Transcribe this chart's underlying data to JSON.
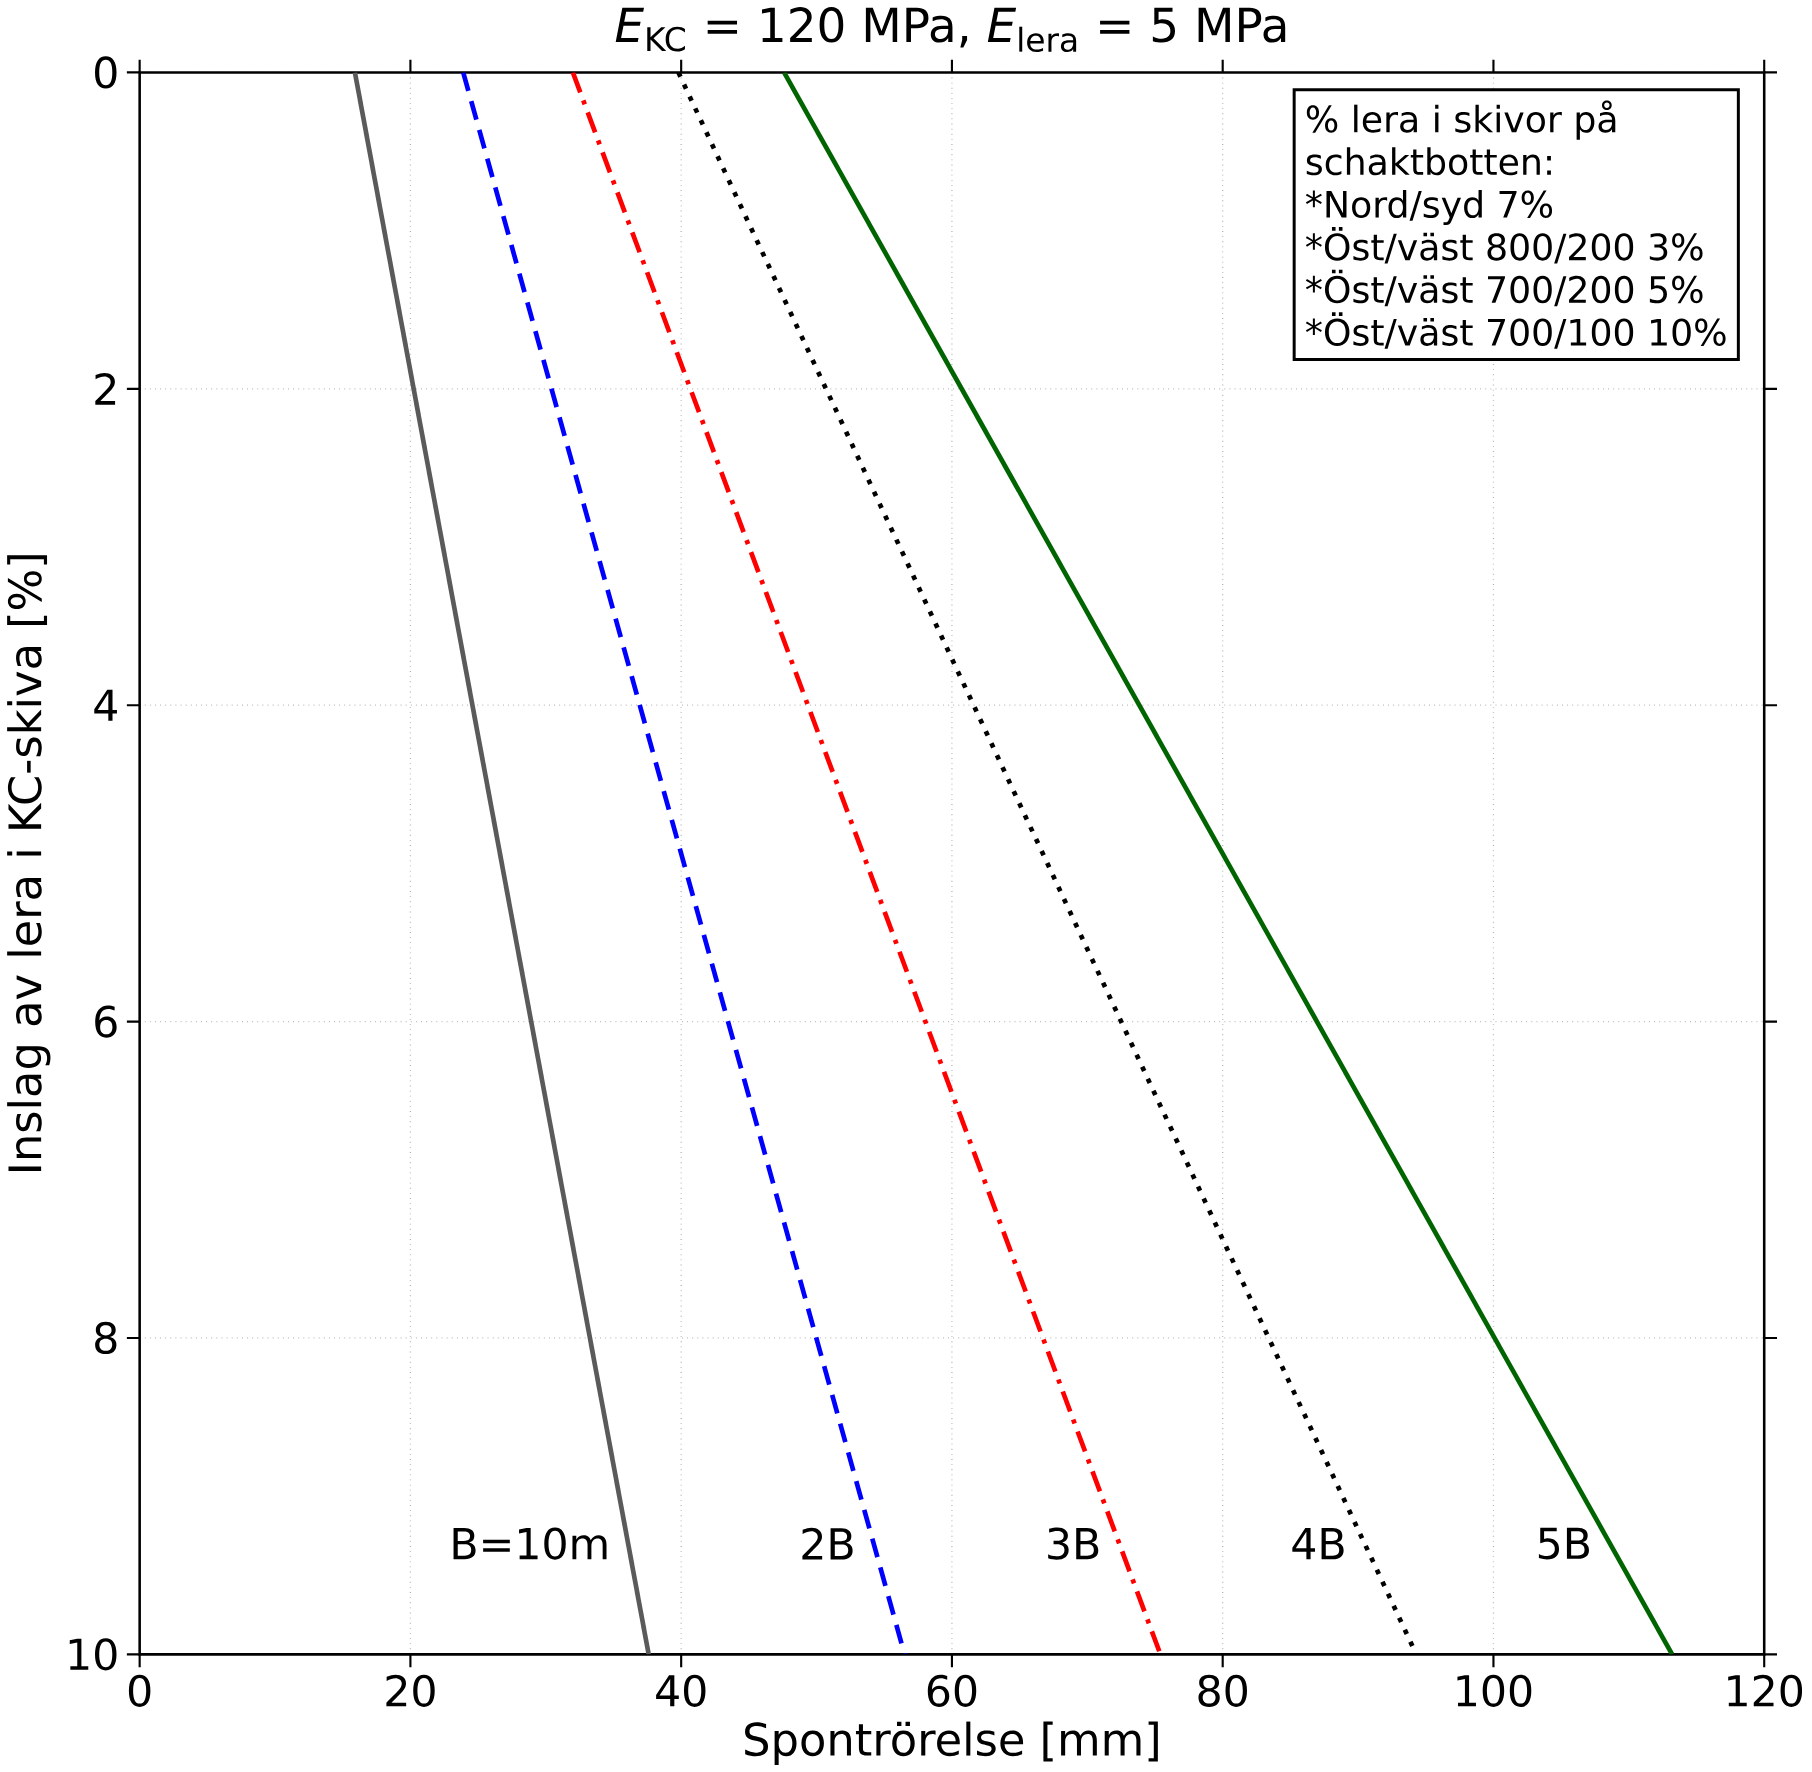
{
  "chart_data": {
    "type": "line",
    "title": "*E*$_{KC}$ = 120 MPa, *E*$_{lera}$ = 5 MPa",
    "xlabel": "Spontrörelse [mm]",
    "ylabel": "Inslag av lera i KC-skiva [%]",
    "xlim": [
      0,
      120
    ],
    "xticks": [
      0,
      20,
      40,
      60,
      80,
      100,
      120
    ],
    "ylim": [
      10,
      0
    ],
    "yticks": [
      0,
      2,
      4,
      6,
      8,
      10
    ],
    "grid": true,
    "marker": "none",
    "series": [
      {
        "name": "B=10m",
        "color": "#5a5a5a",
        "line_style": "solid",
        "x": [
          15.9,
          37.6
        ],
        "values": [
          0,
          10
        ]
      },
      {
        "name": "2B",
        "color": "#0000ff",
        "line_style": "dashed",
        "x": [
          23.9,
          56.5
        ],
        "values": [
          0,
          10
        ]
      },
      {
        "name": "3B",
        "color": "#ff0000",
        "line_style": "dashdot",
        "x": [
          32.0,
          75.4
        ],
        "values": [
          0,
          10
        ]
      },
      {
        "name": "4B",
        "color": "#000000",
        "line_style": "dotted",
        "x": [
          39.8,
          94.3
        ],
        "values": [
          0,
          10
        ]
      },
      {
        "name": "5B",
        "color": "#006400",
        "line_style": "solid",
        "x": [
          47.6,
          113.2
        ],
        "values": [
          0,
          10
        ]
      }
    ],
    "annotations": [
      "% lera i skivor på",
      "schaktbotten:",
      "*Nord/syd 7%",
      "*Öst/väst 800/200 3%",
      "*Öst/väst 700/200 5%",
      "*Öst/väst 700/100 10%"
    ]
  }
}
